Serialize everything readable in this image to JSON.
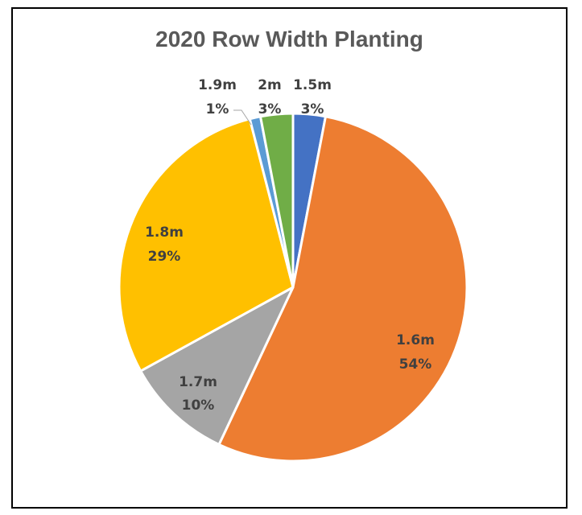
{
  "chart_data": {
    "type": "pie",
    "title": "2020 Row Width Planting",
    "slices": [
      {
        "label": "1.5m",
        "percent_label": "3%",
        "value": 3,
        "color": "#4472C4"
      },
      {
        "label": "1.6m",
        "percent_label": "54%",
        "value": 54,
        "color": "#ED7D31"
      },
      {
        "label": "1.7m",
        "percent_label": "10%",
        "value": 10,
        "color": "#A5A5A5"
      },
      {
        "label": "1.8m",
        "percent_label": "29%",
        "value": 29,
        "color": "#FFC000"
      },
      {
        "label": "1.9m",
        "percent_label": "1%",
        "value": 1,
        "color": "#5B9BD5"
      },
      {
        "label": "2m",
        "percent_label": "3%",
        "value": 3,
        "color": "#70AD47"
      }
    ],
    "start_angle_deg": 0,
    "direction": "clockwise",
    "legend": "none"
  }
}
